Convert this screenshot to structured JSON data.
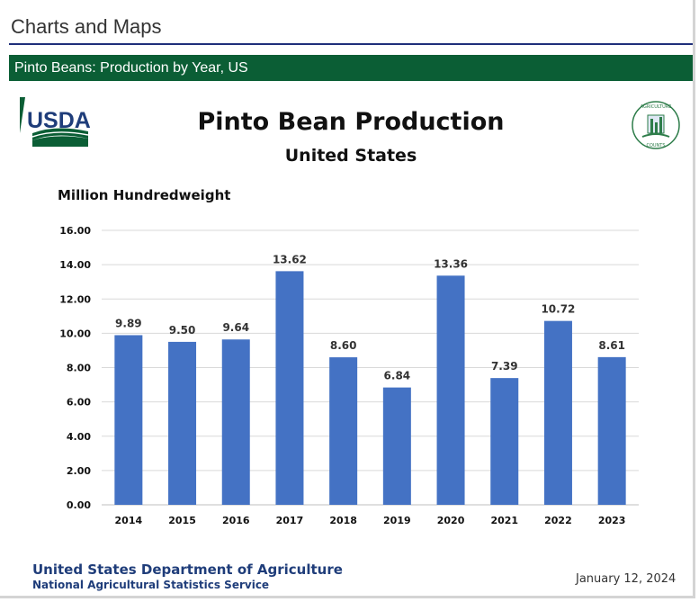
{
  "page": {
    "heading": "Charts and Maps",
    "banner_title": "Pinto Beans: Production by Year, US"
  },
  "logos": {
    "usda_text": "USDA",
    "ag_counts_text": "AGRICULTURE COUNTS"
  },
  "footer": {
    "org": "United States Department of Agriculture",
    "agency": "National Agricultural Statistics Service",
    "date": "January 12, 2024"
  },
  "colors": {
    "bar": "#4472c4",
    "banner": "#0b5e35",
    "navy": "#1f3d7a"
  },
  "chart_data": {
    "type": "bar",
    "title": "Pinto Bean Production",
    "subtitle": "United States",
    "ylabel": "Million Hundredweight",
    "xlabel": "",
    "categories": [
      "2014",
      "2015",
      "2016",
      "2017",
      "2018",
      "2019",
      "2020",
      "2021",
      "2022",
      "2023"
    ],
    "values": [
      9.89,
      9.5,
      9.64,
      13.62,
      8.6,
      6.84,
      13.36,
      7.39,
      10.72,
      8.61
    ],
    "data_labels": [
      "9.89",
      "9.50",
      "9.64",
      "13.62",
      "8.60",
      "6.84",
      "13.36",
      "7.39",
      "10.72",
      "8.61"
    ],
    "ylim": [
      0,
      16
    ],
    "yticks": [
      "0.00",
      "2.00",
      "4.00",
      "6.00",
      "8.00",
      "10.00",
      "12.00",
      "14.00",
      "16.00"
    ],
    "grid": true,
    "legend": "none"
  }
}
